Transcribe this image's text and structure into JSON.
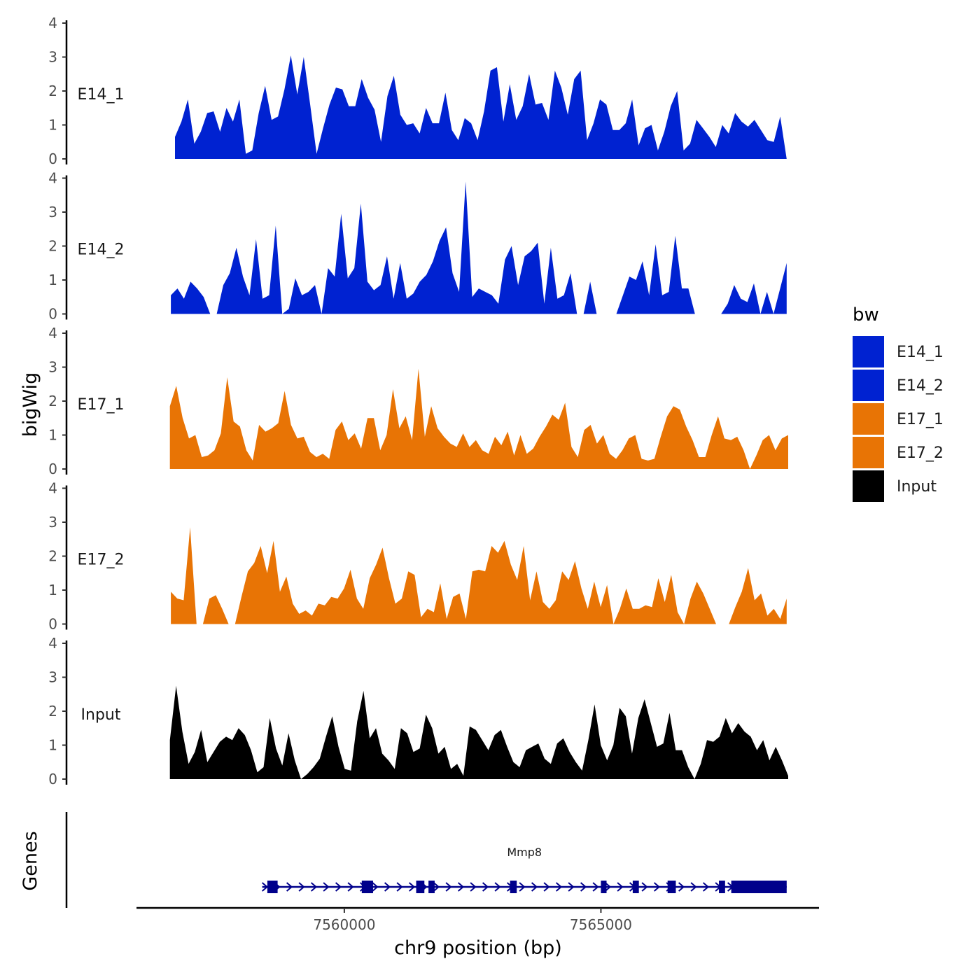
{
  "chart_data": {
    "type": "area",
    "x_axis": {
      "title": "chr9 position (bp)",
      "ticks": [
        7560000,
        7565000
      ],
      "tick_labels": [
        "7560000",
        "7565000"
      ],
      "range": [
        7555950,
        7569250
      ]
    },
    "y_axis": {
      "title": "bigWig",
      "range": [
        0,
        4
      ],
      "ticks": [
        0,
        1,
        2,
        3,
        4
      ],
      "tick_labels": [
        "0",
        "1",
        "2",
        "3",
        "4"
      ]
    },
    "tracks": [
      {
        "name": "E14_1",
        "color": "#0022d1",
        "x_start": 7556700,
        "x_end": 7568620,
        "values": [
          0.65,
          1.1,
          1.75,
          0.45,
          0.8,
          1.35,
          1.4,
          0.8,
          1.5,
          1.1,
          1.75,
          0.15,
          0.25,
          1.35,
          2.15,
          1.15,
          1.25,
          2.05,
          3.05,
          1.9,
          3.0,
          1.6,
          0.15,
          0.9,
          1.6,
          2.1,
          2.05,
          1.55,
          1.55,
          2.35,
          1.8,
          1.45,
          0.5,
          1.85,
          2.45,
          1.3,
          1.0,
          1.05,
          0.75,
          1.5,
          1.05,
          1.05,
          1.95,
          0.85,
          0.55,
          1.2,
          1.05,
          0.55,
          1.4,
          2.6,
          2.7,
          1.1,
          2.2,
          1.15,
          1.55,
          2.5,
          1.6,
          1.65,
          1.15,
          2.6,
          2.1,
          1.3,
          2.35,
          2.6,
          0.55,
          1.05,
          1.75,
          1.6,
          0.85,
          0.85,
          1.05,
          1.75,
          0.4,
          0.9,
          1.0,
          0.25,
          0.8,
          1.55,
          2.0,
          0.25,
          0.45,
          1.15,
          0.9,
          0.65,
          0.35,
          1.0,
          0.75,
          1.35,
          1.1,
          0.95,
          1.15,
          0.85,
          0.55,
          0.5,
          1.25,
          0.0
        ]
      },
      {
        "name": "E14_2",
        "color": "#0022d1",
        "x_start": 7556620,
        "x_end": 7568620,
        "values": [
          0.55,
          0.75,
          0.45,
          0.95,
          0.75,
          0.5,
          0.0,
          0.0,
          0.85,
          1.2,
          1.95,
          1.1,
          0.55,
          2.2,
          0.45,
          0.55,
          2.6,
          0.0,
          0.15,
          1.05,
          0.55,
          0.65,
          0.85,
          0.0,
          1.35,
          1.1,
          2.95,
          1.05,
          1.35,
          3.25,
          0.95,
          0.7,
          0.85,
          1.7,
          0.45,
          1.5,
          0.45,
          0.6,
          0.95,
          1.15,
          1.55,
          2.15,
          2.55,
          1.2,
          0.65,
          3.9,
          0.5,
          0.75,
          0.65,
          0.55,
          0.3,
          1.6,
          2.0,
          0.85,
          1.7,
          1.85,
          2.1,
          0.3,
          1.95,
          0.45,
          0.55,
          1.2,
          0.0,
          0.0,
          0.95,
          0.0,
          0.0,
          0.0,
          0.0,
          0.55,
          1.1,
          1.0,
          1.55,
          0.55,
          2.05,
          0.55,
          0.65,
          2.3,
          0.75,
          0.75,
          0.0,
          0.0,
          0.0,
          0.0,
          0.0,
          0.3,
          0.85,
          0.45,
          0.35,
          0.9,
          0.0,
          0.65,
          0.0,
          0.75,
          1.5
        ]
      },
      {
        "name": "E17_1",
        "color": "#e87405",
        "x_start": 7556600,
        "x_end": 7568650,
        "values": [
          1.85,
          2.45,
          1.5,
          0.9,
          1.0,
          0.35,
          0.4,
          0.55,
          1.05,
          2.7,
          1.4,
          1.25,
          0.55,
          0.25,
          1.3,
          1.1,
          1.2,
          1.35,
          2.3,
          1.3,
          0.9,
          0.95,
          0.5,
          0.35,
          0.45,
          0.3,
          1.15,
          1.4,
          0.85,
          1.05,
          0.6,
          1.5,
          1.5,
          0.55,
          1.0,
          2.35,
          1.2,
          1.55,
          0.85,
          2.95,
          0.95,
          1.85,
          1.2,
          0.95,
          0.75,
          0.65,
          1.05,
          0.65,
          0.85,
          0.55,
          0.45,
          0.95,
          0.7,
          1.1,
          0.4,
          1.0,
          0.45,
          0.6,
          0.95,
          1.25,
          1.6,
          1.45,
          1.95,
          0.65,
          0.35,
          1.15,
          1.3,
          0.75,
          1.0,
          0.45,
          0.3,
          0.55,
          0.9,
          1.0,
          0.3,
          0.25,
          0.3,
          0.95,
          1.55,
          1.85,
          1.75,
          1.25,
          0.85,
          0.35,
          0.35,
          1.0,
          1.55,
          0.9,
          0.85,
          0.95,
          0.55,
          0.0,
          0.4,
          0.85,
          1.0,
          0.55,
          0.9,
          1.0
        ]
      },
      {
        "name": "E17_2",
        "color": "#e87405",
        "x_start": 7556620,
        "x_end": 7568620,
        "values": [
          0.95,
          0.75,
          0.7,
          2.85,
          0.0,
          0.0,
          0.75,
          0.85,
          0.45,
          0.0,
          0.0,
          0.8,
          1.55,
          1.8,
          2.3,
          1.5,
          2.45,
          0.95,
          1.4,
          0.6,
          0.3,
          0.4,
          0.25,
          0.6,
          0.55,
          0.8,
          0.75,
          1.05,
          1.6,
          0.75,
          0.45,
          1.35,
          1.75,
          2.25,
          1.35,
          0.6,
          0.75,
          1.55,
          1.45,
          0.2,
          0.45,
          0.35,
          1.2,
          0.15,
          0.8,
          0.9,
          0.15,
          1.55,
          1.6,
          1.55,
          2.3,
          2.1,
          2.45,
          1.75,
          1.3,
          2.3,
          0.7,
          1.55,
          0.65,
          0.45,
          0.7,
          1.55,
          1.3,
          1.85,
          1.05,
          0.45,
          1.25,
          0.5,
          1.15,
          0.0,
          0.45,
          1.05,
          0.45,
          0.45,
          0.55,
          0.5,
          1.35,
          0.65,
          1.45,
          0.35,
          0.0,
          0.75,
          1.25,
          0.9,
          0.45,
          0.0,
          0.0,
          0.0,
          0.5,
          0.95,
          1.65,
          0.7,
          0.9,
          0.25,
          0.45,
          0.15,
          0.75
        ]
      },
      {
        "name": "Input",
        "color": "#000000",
        "x_start": 7556600,
        "x_end": 7568650,
        "values": [
          1.15,
          2.75,
          1.4,
          0.45,
          0.8,
          1.45,
          0.5,
          0.8,
          1.1,
          1.25,
          1.15,
          1.5,
          1.3,
          0.85,
          0.2,
          0.35,
          1.8,
          0.9,
          0.4,
          1.35,
          0.55,
          0.0,
          0.15,
          0.35,
          0.6,
          1.25,
          1.85,
          0.95,
          0.3,
          0.25,
          1.7,
          2.6,
          1.2,
          1.5,
          0.75,
          0.55,
          0.3,
          1.5,
          1.35,
          0.8,
          0.9,
          1.9,
          1.5,
          0.75,
          0.95,
          0.3,
          0.45,
          0.1,
          1.55,
          1.45,
          1.15,
          0.85,
          1.3,
          1.45,
          0.95,
          0.5,
          0.35,
          0.85,
          0.95,
          1.05,
          0.6,
          0.45,
          1.05,
          1.2,
          0.8,
          0.5,
          0.25,
          1.15,
          2.2,
          1.0,
          0.55,
          1.0,
          2.1,
          1.85,
          0.75,
          1.8,
          2.35,
          1.65,
          0.95,
          1.05,
          1.95,
          0.85,
          0.85,
          0.35,
          0.0,
          0.45,
          1.15,
          1.1,
          1.25,
          1.8,
          1.35,
          1.65,
          1.4,
          1.25,
          0.85,
          1.15,
          0.55,
          0.95,
          0.55,
          0.1
        ]
      }
    ],
    "gene": {
      "name": "Mmp8",
      "color": "#00008b",
      "strand": "+",
      "start": 7558400,
      "end": 7568620,
      "exons": [
        [
          7558500,
          7558700
        ],
        [
          7560340,
          7560560
        ],
        [
          7561400,
          7561560
        ],
        [
          7561640,
          7561760
        ],
        [
          7563230,
          7563360
        ],
        [
          7565000,
          7565110
        ],
        [
          7565620,
          7565740
        ],
        [
          7566300,
          7566460
        ],
        [
          7567300,
          7567420
        ],
        [
          7567540,
          7568620
        ]
      ]
    },
    "gene_track_label": "Genes",
    "legend": {
      "title": "bw",
      "position": "right",
      "entries": [
        {
          "label": "E14_1",
          "color": "#0022d1"
        },
        {
          "label": "E14_2",
          "color": "#0022d1"
        },
        {
          "label": "E17_1",
          "color": "#e87405"
        },
        {
          "label": "E17_2",
          "color": "#e87405"
        },
        {
          "label": "Input",
          "color": "#000000"
        }
      ]
    }
  }
}
